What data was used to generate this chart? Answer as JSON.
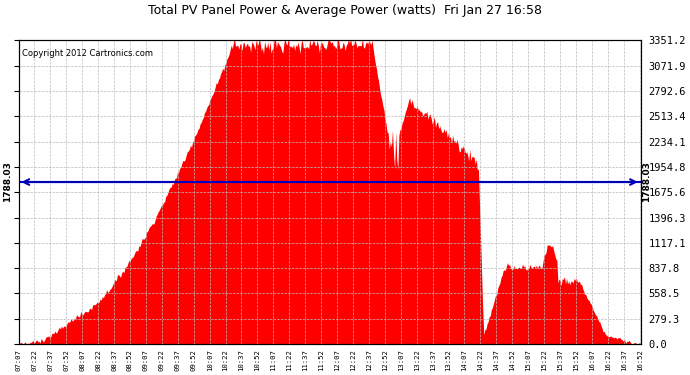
{
  "title": "Total PV Panel Power & Average Power (watts)  Fri Jan 27 16:58",
  "copyright": "Copyright 2012 Cartronics.com",
  "average_power": 1788.03,
  "y_max": 3351.2,
  "y_ticks": [
    0.0,
    279.3,
    558.5,
    837.8,
    1117.1,
    1396.3,
    1675.6,
    1954.8,
    2234.1,
    2513.4,
    2792.6,
    3071.9,
    3351.2
  ],
  "fill_color": "#FF0000",
  "line_color": "#0000BB",
  "background_color": "#FFFFFF",
  "grid_color": "#BBBBBB",
  "title_color": "#000000",
  "copyright_color": "#000000",
  "figwidth": 6.9,
  "figheight": 3.75,
  "dpi": 100
}
